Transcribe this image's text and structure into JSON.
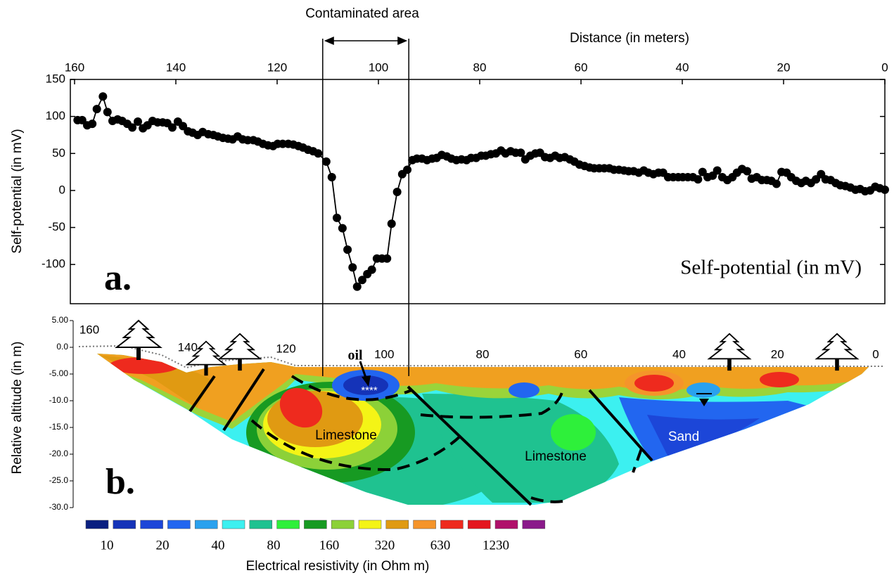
{
  "chart_data": [
    {
      "type": "line",
      "top_label": "Contaminated area",
      "x_label": "Distance (in meters)",
      "y_label": "Self-potential (in mV)",
      "annotation": "Self-potential (in mV)",
      "panel_label": "a.",
      "color": "#000000",
      "highlight_range": [
        111,
        94
      ],
      "xlim": [
        160,
        0
      ],
      "xticks": [
        160,
        140,
        120,
        100,
        80,
        60,
        40,
        20,
        0
      ],
      "ylim": [
        -153,
        150
      ],
      "yticks": [
        -100,
        -50,
        0,
        50,
        100,
        150
      ],
      "x": [
        159.4,
        158.5,
        157.5,
        156.5,
        155.6,
        154.4,
        153.5,
        152.5,
        151.5,
        150.6,
        149.6,
        148.6,
        147.5,
        146.5,
        145.6,
        144.6,
        143.6,
        142.6,
        141.7,
        140.7,
        139.6,
        138.6,
        137.6,
        136.7,
        135.7,
        134.7,
        133.6,
        132.6,
        131.7,
        130.7,
        129.7,
        128.8,
        127.8,
        126.8,
        125.8,
        124.7,
        123.8,
        122.8,
        121.8,
        120.8,
        119.9,
        118.9,
        117.8,
        116.8,
        115.8,
        114.9,
        113.9,
        112.9,
        111.9,
        110.3,
        109.2,
        108.2,
        107.1,
        106.1,
        105.1,
        104.2,
        103.2,
        102.2,
        101.3,
        100.3,
        99.3,
        98.3,
        97.4,
        96.3,
        95.3,
        94.3,
        93.3,
        92.4,
        91.4,
        90.4,
        89.4,
        88.5,
        87.5,
        86.5,
        85.6,
        84.6,
        83.6,
        82.6,
        81.7,
        80.7,
        79.7,
        78.8,
        77.8,
        76.8,
        75.8,
        74.9,
        73.9,
        72.9,
        71.9,
        71.0,
        70.0,
        69.0,
        68.1,
        67.1,
        66.1,
        65.1,
        64.2,
        63.2,
        62.2,
        61.3,
        60.3,
        59.3,
        58.3,
        57.4,
        56.4,
        55.4,
        54.4,
        53.5,
        52.5,
        51.5,
        50.6,
        49.6,
        48.6,
        47.6,
        46.7,
        45.7,
        44.7,
        43.8,
        42.8,
        41.8,
        40.8,
        39.9,
        38.9,
        37.9,
        36.9,
        36.0,
        35.0,
        34.0,
        33.1,
        32.1,
        31.1,
        30.1,
        29.2,
        28.2,
        27.2,
        26.3,
        25.3,
        24.3,
        23.3,
        22.4,
        21.4,
        20.4,
        19.4,
        18.5,
        17.5,
        16.5,
        15.6,
        14.6,
        13.6,
        12.6,
        11.7,
        10.7,
        9.7,
        8.8,
        7.8,
        6.8,
        5.8,
        4.9,
        3.9,
        2.9,
        1.9,
        1.0,
        0
      ],
      "values": [
        95,
        95,
        88,
        90,
        110,
        127,
        106,
        94,
        96,
        94,
        90,
        85,
        93,
        84,
        88,
        94,
        92,
        92,
        91,
        85,
        93,
        87,
        80,
        78,
        75,
        79,
        76,
        75,
        73,
        71,
        70,
        69,
        73,
        69,
        68,
        68,
        66,
        63,
        61,
        60,
        63,
        63,
        63,
        62,
        60,
        58,
        55,
        53,
        50,
        39,
        18,
        -37,
        -51,
        -80,
        -104,
        -130,
        -121,
        -113,
        -107,
        -92,
        -92,
        -92,
        -45,
        -2,
        22,
        28,
        41,
        43,
        43,
        41,
        43,
        44,
        48,
        46,
        43,
        41,
        42,
        41,
        44,
        44,
        47,
        47,
        49,
        50,
        54,
        50,
        53,
        51,
        51,
        42,
        47,
        50,
        51,
        45,
        44,
        47,
        44,
        45,
        42,
        39,
        35,
        33,
        31,
        30,
        30,
        30,
        30,
        28,
        28,
        27,
        26,
        26,
        24,
        27,
        24,
        22,
        24,
        24,
        18,
        18,
        18,
        18,
        18,
        18,
        15,
        25,
        18,
        20,
        27,
        18,
        14,
        18,
        24,
        29,
        26,
        16,
        18,
        14,
        14,
        13,
        9,
        25,
        24,
        18,
        13,
        10,
        13,
        10,
        15,
        22,
        15,
        14,
        10,
        7,
        6,
        4,
        1,
        2,
        -1,
        0,
        5,
        3,
        1
      ]
    },
    {
      "type": "contour",
      "panel_label": "b.",
      "y_label": "Relative altitude (in m)",
      "xlim": [
        160,
        0
      ],
      "xticks": [
        160,
        140,
        120,
        100,
        80,
        60,
        40,
        20,
        0
      ],
      "ylim": [
        -30,
        5
      ],
      "yticks": [
        {
          "value": 5,
          "label": "5.00"
        },
        {
          "value": 0,
          "label": "0.0"
        },
        {
          "value": -5,
          "label": "-5.00"
        },
        {
          "value": -10,
          "label": "-10.0"
        },
        {
          "value": -15,
          "label": "-15.0"
        },
        {
          "value": -20,
          "label": "-20.0"
        },
        {
          "value": -25,
          "label": "-25.0"
        },
        {
          "value": -30,
          "label": "-30.0"
        }
      ],
      "annotations": [
        "oil",
        "****",
        "Limestone",
        "Limestone",
        "Sand"
      ],
      "colorbar": {
        "label": "Electrical resistivity (in Ohm m)",
        "colors": [
          "#0a1f80",
          "#1533b8",
          "#1c46d8",
          "#2266f0",
          "#2aa1ee",
          "#3cf0f0",
          "#1fc290",
          "#2ef03a",
          "#179a22",
          "#8cd138",
          "#f4f416",
          "#e09a12",
          "#f5942a",
          "#ee2a1e",
          "#e4161e",
          "#b0106a",
          "#8a1a8a"
        ],
        "ticks": [
          10,
          20,
          40,
          80,
          160,
          320,
          630,
          1230
        ]
      }
    }
  ]
}
